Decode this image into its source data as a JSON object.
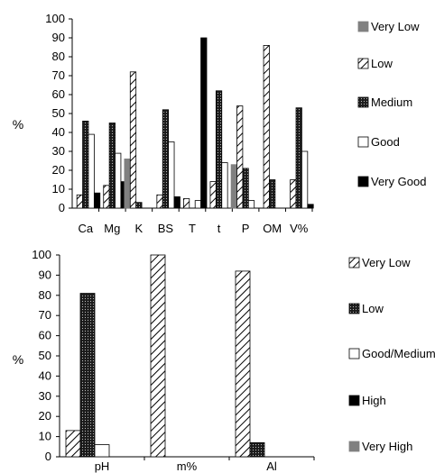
{
  "colors": {
    "very_low_solid": "#808080",
    "medium_dots": "#1a1a1a",
    "very_good": "#000000",
    "good": "#ffffff",
    "axis": "#000000"
  },
  "chart_data": [
    {
      "type": "bar",
      "ylabel": "%",
      "ylim": [
        0,
        100
      ],
      "yticks": [
        0,
        10,
        20,
        30,
        40,
        50,
        60,
        70,
        80,
        90,
        100
      ],
      "categories": [
        "Ca",
        "Mg",
        "K",
        "BS",
        "T",
        "t",
        "P",
        "OM",
        "V%"
      ],
      "legend_position": "right",
      "series": [
        {
          "name": "Very Low",
          "pattern": "solid-gray",
          "values": [
            0,
            0,
            26,
            0,
            0,
            0,
            23,
            0,
            0
          ]
        },
        {
          "name": "Low",
          "pattern": "hatch",
          "values": [
            7,
            12,
            72,
            7,
            5,
            14,
            54,
            86,
            15
          ]
        },
        {
          "name": "Medium",
          "pattern": "dots",
          "values": [
            46,
            45,
            3,
            52,
            0,
            62,
            21,
            15,
            53
          ]
        },
        {
          "name": "Good",
          "pattern": "white",
          "values": [
            39,
            29,
            0,
            35,
            4,
            24,
            4,
            0,
            30
          ]
        },
        {
          "name": "Very Good",
          "pattern": "black",
          "values": [
            8,
            14,
            0,
            6,
            90,
            0,
            0,
            0,
            2
          ]
        }
      ]
    },
    {
      "type": "bar",
      "ylabel": "%",
      "ylim": [
        0,
        100
      ],
      "yticks": [
        0,
        10,
        20,
        30,
        40,
        50,
        60,
        70,
        80,
        90,
        100
      ],
      "categories": [
        "pH",
        "m%",
        "Al"
      ],
      "legend_position": "right",
      "series": [
        {
          "name": "Very Low",
          "pattern": "hatch",
          "values": [
            13,
            100,
            92
          ]
        },
        {
          "name": "Low",
          "pattern": "dots",
          "values": [
            81,
            0,
            7
          ]
        },
        {
          "name": "Good/Medium",
          "pattern": "white",
          "values": [
            6,
            0,
            0
          ]
        },
        {
          "name": "High",
          "pattern": "black",
          "values": [
            0,
            0,
            0
          ]
        },
        {
          "name": "Very High",
          "pattern": "solid-gray",
          "values": [
            0,
            0,
            0
          ]
        }
      ]
    }
  ]
}
